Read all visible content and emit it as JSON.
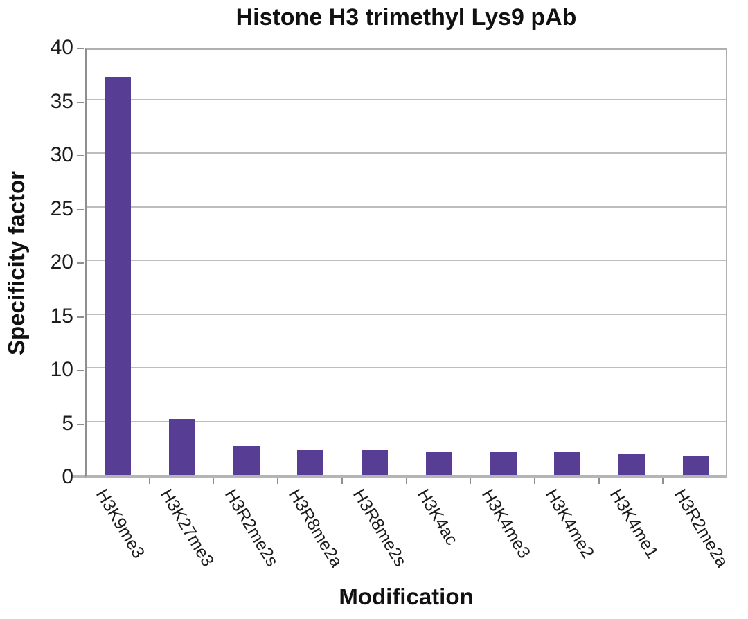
{
  "chart_data": {
    "type": "bar",
    "title": "Histone H3 trimethyl Lys9 pAb",
    "xlabel": "Modification",
    "ylabel": "Specificity factor",
    "categories": [
      "H3K9me3",
      "H3K27me3",
      "H3R2me2s",
      "H3R8me2a",
      "H3R8me2s",
      "H3K4ac",
      "H3K4me3",
      "H3K4me2",
      "H3K4me1",
      "H3R2me2a"
    ],
    "values": [
      37.1,
      5.2,
      2.7,
      2.3,
      2.3,
      2.1,
      2.1,
      2.1,
      2.0,
      1.8
    ],
    "ylim": [
      0,
      40
    ],
    "yticks": [
      0,
      5,
      10,
      15,
      20,
      25,
      30,
      35,
      40
    ],
    "grid": true,
    "legend_position": "none",
    "bar_color": "#573e94",
    "grid_color": "#bdbdbd",
    "axis_color": "#8f8f8f",
    "text_color": "#1c1c1c"
  }
}
